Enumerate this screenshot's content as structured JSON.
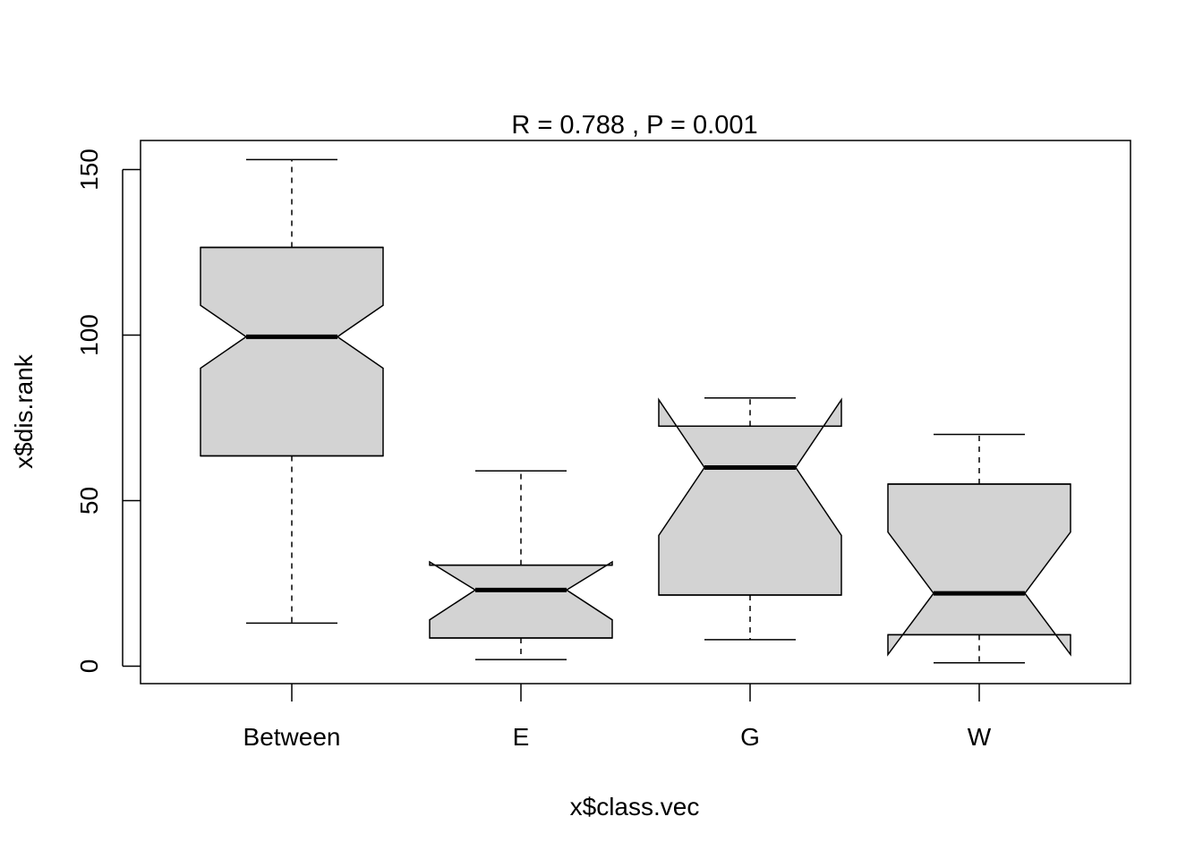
{
  "chart_data": {
    "type": "boxplot",
    "title": "R =  0.788 ,  P =  0.001",
    "xlabel": "x$class.vec",
    "ylabel": "x$dis.rank",
    "ylim": [
      -5,
      159
    ],
    "yticks": [
      0,
      50,
      100,
      150
    ],
    "notched": true,
    "box_color": "#d3d3d3",
    "categories": [
      "Between",
      "E",
      "G",
      "W"
    ],
    "boxes": [
      {
        "name": "Between",
        "min": 13,
        "q1": 63.5,
        "median": 99.5,
        "q3": 126.5,
        "max": 153,
        "notch_low": 90,
        "notch_high": 109
      },
      {
        "name": "E",
        "min": 2,
        "q1": 8.5,
        "median": 23,
        "q3": 30.5,
        "max": 59,
        "notch_low": 14,
        "notch_high": 31.5
      },
      {
        "name": "G",
        "min": 8,
        "q1": 21.5,
        "median": 60,
        "q3": 72.5,
        "max": 81,
        "notch_low": 39.5,
        "notch_high": 80.5
      },
      {
        "name": "W",
        "min": 1,
        "q1": 9.5,
        "median": 22,
        "q3": 55,
        "max": 70,
        "notch_low": 3.5,
        "notch_high": 40.5
      }
    ]
  }
}
